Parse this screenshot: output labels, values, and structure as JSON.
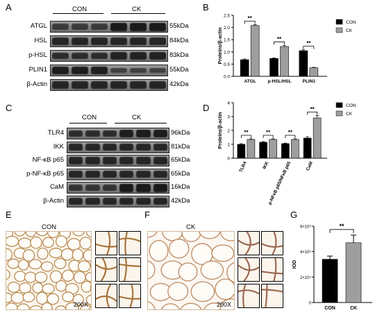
{
  "panels": {
    "A": "A",
    "B": "B",
    "C": "C",
    "D": "D",
    "E": "E",
    "F": "F",
    "G": "G"
  },
  "blotA": {
    "groups": [
      "CON",
      "CK"
    ],
    "proteins": [
      {
        "name": "ATGL",
        "kda": "55kDa"
      },
      {
        "name": "HSL",
        "kda": "84kDa"
      },
      {
        "name": "p-HSL",
        "kda": "83kDa"
      },
      {
        "name": "PLIN1",
        "kda": "55kDa"
      },
      {
        "name": "β-Actin",
        "kda": "42kDa"
      }
    ]
  },
  "blotC": {
    "groups": [
      "CON",
      "CK"
    ],
    "proteins": [
      {
        "name": "TLR4",
        "kda": "96kDa"
      },
      {
        "name": "IKK",
        "kda": "81kDa"
      },
      {
        "name": "NF-κB p65",
        "kda": "65kDa"
      },
      {
        "name": "p-NF-κB p65",
        "kda": "65kDa"
      },
      {
        "name": "CaM",
        "kda": "16kDa"
      },
      {
        "name": "β-Actin",
        "kda": "42kDa"
      }
    ]
  },
  "histology": {
    "E_title": "CON",
    "F_title": "CK",
    "magnification_E": "200X",
    "magnification_F": "200X"
  },
  "colors": {
    "con": "#000000",
    "ck": "#9e9e9e"
  },
  "chart_data": [
    {
      "id": "B",
      "type": "bar",
      "categories": [
        "ATGL",
        "p-HSL/HSL",
        "PLIN1"
      ],
      "series": [
        {
          "name": "CON",
          "values": [
            0.68,
            0.73,
            1.05
          ],
          "errors": [
            0.03,
            0.03,
            0.04
          ]
        },
        {
          "name": "CK",
          "values": [
            2.08,
            1.22,
            0.35
          ],
          "errors": [
            0.04,
            0.05,
            0.02
          ]
        }
      ],
      "ylabel": "Proteins/β-actin",
      "ylim": [
        0,
        2.5
      ],
      "yticks": [
        "0.0",
        "0.5",
        "1.0",
        "1.5",
        "2.0",
        "2.5"
      ],
      "significance": [
        "**",
        "**",
        "**"
      ],
      "legend": "top-right"
    },
    {
      "id": "D",
      "type": "bar",
      "categories": [
        "TLR4",
        "IKK",
        "p-NFκB p65/NFκB p65",
        "CaM"
      ],
      "series": [
        {
          "name": "CON",
          "values": [
            1.0,
            1.15,
            1.05,
            1.45
          ],
          "errors": [
            0.05,
            0.05,
            0.04,
            0.1
          ]
        },
        {
          "name": "CK",
          "values": [
            1.35,
            1.35,
            1.35,
            2.9
          ],
          "errors": [
            0.05,
            0.05,
            0.05,
            0.18
          ]
        }
      ],
      "ylabel": "Proteins/β-actin",
      "ylim": [
        0,
        4
      ],
      "yticks": [
        "0",
        "1",
        "2",
        "3",
        "4"
      ],
      "significance": [
        "**",
        "**",
        "**",
        "**"
      ],
      "legend": "top-right"
    },
    {
      "id": "G",
      "type": "bar",
      "categories": [
        "CON",
        "CK"
      ],
      "values": [
        3.4,
        4.7
      ],
      "errors": [
        0.25,
        0.6
      ],
      "ylabel": "IOD",
      "ylim": [
        0,
        6
      ],
      "yticks": [
        "0",
        "2×10⁵",
        "4×10⁵",
        "6×10⁵"
      ],
      "significance": [
        "**"
      ]
    }
  ]
}
